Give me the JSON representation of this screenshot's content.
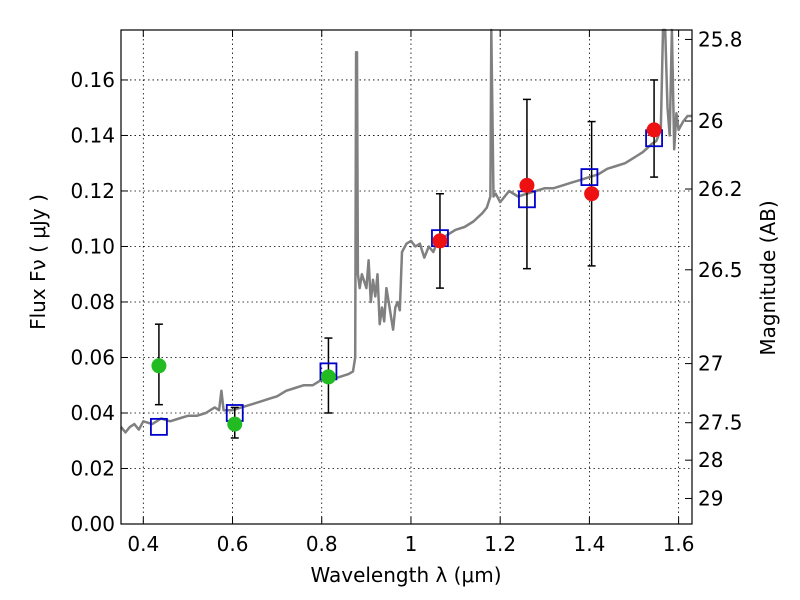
{
  "chart_data": {
    "type": "scatter",
    "xlabel": "Wavelength  λ (μm)",
    "ylabel": "Flux  Fν  ( μJy )",
    "ylabel_right": "Magnitude (AB)",
    "xlim": [
      0.35,
      1.63
    ],
    "ylim": [
      0.0,
      0.178
    ],
    "grid": true,
    "x_ticks": [
      0.4,
      0.6,
      0.8,
      1.0,
      1.2,
      1.4,
      1.6
    ],
    "x_tick_labels": [
      "0.4",
      "0.6",
      "0.8",
      "1",
      "1.2",
      "1.4",
      "1.6"
    ],
    "y_ticks": [
      0.0,
      0.02,
      0.04,
      0.06,
      0.08,
      0.1,
      0.12,
      0.14,
      0.16
    ],
    "y_tick_labels": [
      "0.00",
      "0.02",
      "0.04",
      "0.06",
      "0.08",
      "0.10",
      "0.12",
      "0.14",
      "0.16"
    ],
    "right_ticks": [
      {
        "label": "25.8",
        "flux": 0.1746
      },
      {
        "label": "26",
        "flux": 0.1452
      },
      {
        "label": "26.2",
        "flux": 0.1207
      },
      {
        "label": "26.5",
        "flux": 0.0916
      },
      {
        "label": "27",
        "flux": 0.0578
      },
      {
        "label": "27.5",
        "flux": 0.0365
      },
      {
        "label": "28",
        "flux": 0.023
      },
      {
        "label": "29",
        "flux": 0.0092
      }
    ],
    "series": [
      {
        "kind": "model_spectrum",
        "color": "#808080",
        "points": [
          [
            0.35,
            0.035
          ],
          [
            0.36,
            0.033
          ],
          [
            0.37,
            0.035
          ],
          [
            0.38,
            0.036
          ],
          [
            0.39,
            0.034
          ],
          [
            0.4,
            0.037
          ],
          [
            0.42,
            0.036
          ],
          [
            0.44,
            0.038
          ],
          [
            0.46,
            0.037
          ],
          [
            0.48,
            0.038
          ],
          [
            0.5,
            0.039
          ],
          [
            0.52,
            0.039
          ],
          [
            0.54,
            0.04
          ],
          [
            0.56,
            0.042
          ],
          [
            0.57,
            0.041
          ],
          [
            0.575,
            0.048
          ],
          [
            0.58,
            0.041
          ],
          [
            0.6,
            0.041
          ],
          [
            0.62,
            0.042
          ],
          [
            0.64,
            0.043
          ],
          [
            0.66,
            0.044
          ],
          [
            0.68,
            0.045
          ],
          [
            0.7,
            0.046
          ],
          [
            0.72,
            0.048
          ],
          [
            0.74,
            0.049
          ],
          [
            0.76,
            0.05
          ],
          [
            0.78,
            0.05
          ],
          [
            0.8,
            0.052
          ],
          [
            0.82,
            0.052
          ],
          [
            0.84,
            0.053
          ],
          [
            0.86,
            0.054
          ],
          [
            0.87,
            0.055
          ],
          [
            0.875,
            0.06
          ],
          [
            0.877,
            0.17
          ],
          [
            0.879,
            0.17
          ],
          [
            0.881,
            0.09
          ],
          [
            0.885,
            0.085
          ],
          [
            0.89,
            0.09
          ],
          [
            0.9,
            0.085
          ],
          [
            0.905,
            0.095
          ],
          [
            0.91,
            0.08
          ],
          [
            0.915,
            0.088
          ],
          [
            0.92,
            0.082
          ],
          [
            0.925,
            0.09
          ],
          [
            0.93,
            0.072
          ],
          [
            0.935,
            0.078
          ],
          [
            0.94,
            0.073
          ],
          [
            0.945,
            0.085
          ],
          [
            0.95,
            0.08
          ],
          [
            0.955,
            0.075
          ],
          [
            0.96,
            0.07
          ],
          [
            0.965,
            0.078
          ],
          [
            0.97,
            0.08
          ],
          [
            0.975,
            0.077
          ],
          [
            0.98,
            0.098
          ],
          [
            0.99,
            0.101
          ],
          [
            1.0,
            0.102
          ],
          [
            1.01,
            0.1
          ],
          [
            1.02,
            0.101
          ],
          [
            1.03,
            0.096
          ],
          [
            1.04,
            0.1
          ],
          [
            1.05,
            0.098
          ],
          [
            1.06,
            0.102
          ],
          [
            1.07,
            0.103
          ],
          [
            1.08,
            0.104
          ],
          [
            1.09,
            0.105
          ],
          [
            1.1,
            0.106
          ],
          [
            1.12,
            0.107
          ],
          [
            1.14,
            0.109
          ],
          [
            1.16,
            0.112
          ],
          [
            1.17,
            0.114
          ],
          [
            1.178,
            0.118
          ],
          [
            1.18,
            0.178
          ],
          [
            1.185,
            0.118
          ],
          [
            1.19,
            0.119
          ],
          [
            1.2,
            0.116
          ],
          [
            1.22,
            0.12
          ],
          [
            1.24,
            0.118
          ],
          [
            1.26,
            0.119
          ],
          [
            1.28,
            0.12
          ],
          [
            1.3,
            0.121
          ],
          [
            1.32,
            0.121
          ],
          [
            1.34,
            0.122
          ],
          [
            1.36,
            0.123
          ],
          [
            1.38,
            0.124
          ],
          [
            1.4,
            0.125
          ],
          [
            1.42,
            0.126
          ],
          [
            1.44,
            0.128
          ],
          [
            1.46,
            0.129
          ],
          [
            1.48,
            0.13
          ],
          [
            1.5,
            0.132
          ],
          [
            1.52,
            0.134
          ],
          [
            1.54,
            0.137
          ],
          [
            1.55,
            0.138
          ],
          [
            1.56,
            0.142
          ],
          [
            1.565,
            0.178
          ],
          [
            1.57,
            0.178
          ],
          [
            1.575,
            0.15
          ],
          [
            1.58,
            0.14
          ],
          [
            1.585,
            0.178
          ],
          [
            1.59,
            0.135
          ],
          [
            1.595,
            0.148
          ],
          [
            1.6,
            0.142
          ],
          [
            1.61,
            0.145
          ],
          [
            1.62,
            0.147
          ],
          [
            1.63,
            0.147
          ]
        ]
      },
      {
        "kind": "model_photometry",
        "marker": "open-square",
        "color": "#0000cc",
        "points": [
          [
            0.435,
            0.035
          ],
          [
            0.605,
            0.04
          ],
          [
            0.815,
            0.055
          ],
          [
            1.065,
            0.103
          ],
          [
            1.26,
            0.117
          ],
          [
            1.4,
            0.125
          ],
          [
            1.545,
            0.139
          ]
        ]
      },
      {
        "kind": "observed_flux",
        "marker": "filled-circle",
        "color": "#22bb22",
        "points": [
          {
            "x": 0.435,
            "y": 0.057,
            "err_low": 0.043,
            "err_high": 0.072
          },
          {
            "x": 0.605,
            "y": 0.036,
            "err_low": 0.031,
            "err_high": 0.042
          },
          {
            "x": 0.815,
            "y": 0.053,
            "err_low": 0.04,
            "err_high": 0.067
          }
        ]
      },
      {
        "kind": "observed_flux",
        "marker": "filled-circle",
        "color": "#ee1111",
        "points": [
          {
            "x": 1.065,
            "y": 0.102,
            "err_low": 0.085,
            "err_high": 0.119
          },
          {
            "x": 1.26,
            "y": 0.122,
            "err_low": 0.092,
            "err_high": 0.153
          },
          {
            "x": 1.405,
            "y": 0.119,
            "err_low": 0.093,
            "err_high": 0.145
          },
          {
            "x": 1.545,
            "y": 0.142,
            "err_low": 0.125,
            "err_high": 0.16
          }
        ]
      }
    ]
  }
}
